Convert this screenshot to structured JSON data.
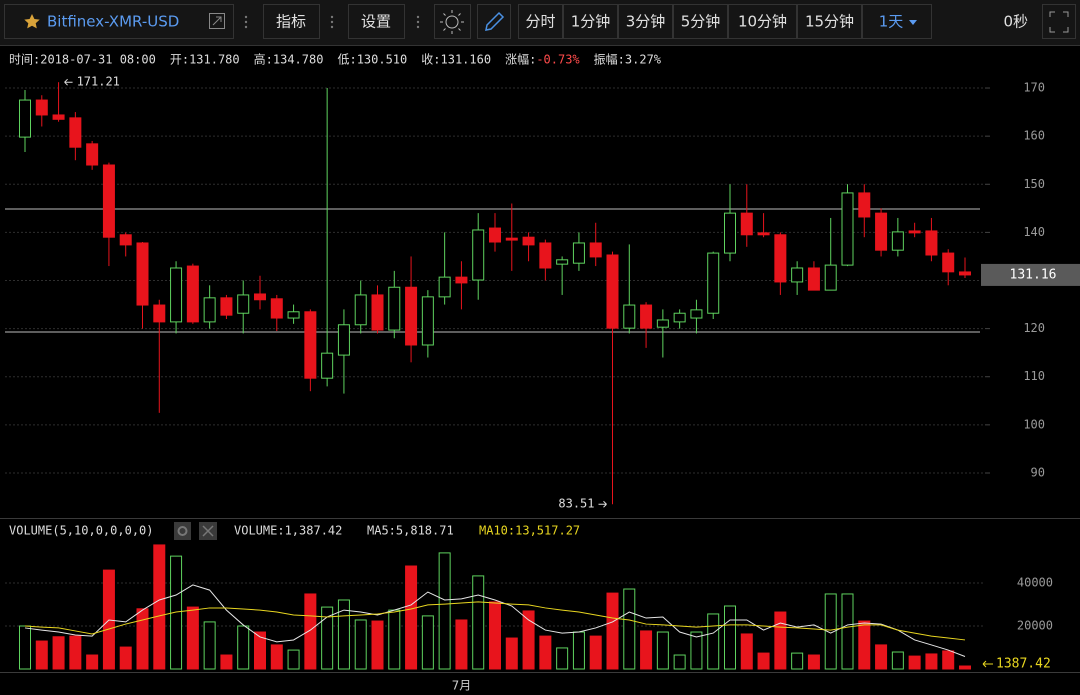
{
  "toolbar": {
    "symbol": "Bitfinex-XMR-USD",
    "indicators": "指标",
    "settings": "设置",
    "intervals": [
      "分时",
      "1分钟",
      "3分钟",
      "5分钟",
      "10分钟",
      "15分钟",
      "1天"
    ],
    "active_interval": 6,
    "countdown": "0秒"
  },
  "info": [
    {
      "label": "时间:",
      "value": "2018-07-31 08:00"
    },
    {
      "label": "开:",
      "value": "131.780"
    },
    {
      "label": "高:",
      "value": "134.780"
    },
    {
      "label": "低:",
      "value": "130.510"
    },
    {
      "label": "收:",
      "value": "131.160"
    },
    {
      "label": "涨幅:",
      "value": "-0.73%",
      "color": "#ff4b4b"
    },
    {
      "label": "振幅:",
      "value": "3.27%"
    }
  ],
  "chart_data": {
    "type": "candlestick",
    "categories": [
      null,
      null,
      null,
      null,
      null,
      null,
      null,
      null,
      null,
      null,
      null,
      null,
      null,
      null,
      null,
      null,
      null,
      null,
      null,
      null,
      null,
      null,
      null,
      null,
      null,
      null,
      "7月",
      null,
      null,
      null,
      null,
      null,
      null,
      null,
      null,
      null,
      null,
      null,
      null,
      null,
      null,
      null,
      null,
      null,
      null,
      null,
      null,
      null,
      null,
      null,
      null,
      null,
      null,
      null,
      null,
      null,
      null
    ],
    "open": [
      159.8,
      167.5,
      164.4,
      163.8,
      158.4,
      154,
      139.5,
      137.8,
      124.9,
      121.4,
      133,
      121.4,
      126.4,
      123.2,
      127.2,
      126.2,
      122.2,
      123.5,
      109.7,
      114.5,
      120.8,
      127,
      119.7,
      128.6,
      116.6,
      126.6,
      130.7,
      130.1,
      140.9,
      138.8,
      139,
      137.8,
      133.4,
      133.6,
      137.8,
      135.3,
      120.1,
      124.9,
      120.3,
      121.4,
      122.2,
      123.2,
      135.7,
      144,
      139.9,
      139.5,
      129.7,
      132.6,
      128,
      133.2,
      148.2,
      144,
      136.3,
      140.3,
      140.3,
      135.7,
      131.78
    ],
    "high": [
      169.6,
      168.5,
      171.21,
      165,
      159,
      154.5,
      140,
      138,
      126,
      134,
      133.5,
      129,
      127,
      130,
      131,
      127,
      125,
      124,
      170,
      124,
      130,
      129,
      132,
      135,
      128,
      140,
      134,
      144,
      144,
      146,
      140,
      138.5,
      135,
      140,
      142,
      136,
      137.5,
      125.5,
      124,
      124,
      126,
      136,
      150,
      150,
      144,
      140,
      134,
      134,
      143,
      150,
      150,
      145,
      143,
      142,
      143,
      136.5,
      134.78
    ],
    "low": [
      156.7,
      162,
      163,
      155,
      153,
      133,
      135,
      120,
      102.5,
      119,
      121,
      120,
      122,
      119,
      124,
      119.5,
      121,
      107,
      108,
      106.5,
      119,
      119,
      118,
      113,
      114,
      125,
      124,
      126,
      136,
      132,
      134,
      130,
      127,
      132,
      133,
      83.51,
      119,
      116,
      114,
      120,
      119,
      122,
      134,
      137,
      139,
      127,
      127,
      128,
      128,
      133,
      139,
      135,
      135,
      139,
      134,
      129,
      130.51
    ],
    "close": [
      167.5,
      164.4,
      163.5,
      157.7,
      154,
      139,
      137.4,
      124.9,
      121.4,
      132.6,
      121.4,
      126.4,
      122.8,
      127,
      126,
      122.2,
      123.5,
      109.7,
      114.9,
      120.8,
      127,
      119.7,
      128.6,
      116.6,
      126.6,
      130.7,
      129.5,
      140.5,
      138,
      138.4,
      137.4,
      132.6,
      134.3,
      137.8,
      134.9,
      120.1,
      124.9,
      120.1,
      121.8,
      123.2,
      123.9,
      135.7,
      144,
      139.5,
      139.5,
      129.7,
      132.6,
      128,
      133.2,
      148.2,
      143.2,
      136.3,
      140.1,
      139.9,
      135.3,
      131.8,
      131.16
    ],
    "up_color": "#5fd35f",
    "down_color": "#e8141c",
    "ylim": [
      81.27,
      174.16
    ],
    "yticks": [
      90,
      100,
      110,
      120,
      130,
      140,
      150,
      160,
      170
    ],
    "grid": true,
    "hlines": [
      144.85,
      119.3
    ],
    "high_index": 2,
    "low_index": 35,
    "volume": {
      "legend": "VOLUME(5,10,0,0,0,0)",
      "current": "VOLUME:1,387.42",
      "ma5_label": "MA5:5,818.71",
      "ma10_label": "MA10:13,517.27",
      "values": [
        20000,
        13000,
        15000,
        15300,
        6500,
        46000,
        10200,
        28000,
        57700,
        52500,
        28800,
        21900,
        6500,
        20000,
        17200,
        11200,
        8800,
        34900,
        28800,
        32100,
        22800,
        22300,
        27400,
        47900,
        24700,
        54000,
        22800,
        43300,
        31200,
        14400,
        27000,
        15300,
        9800,
        17200,
        15300,
        35300,
        37200,
        17700,
        17200,
        6500,
        17200,
        25600,
        29300,
        16300,
        7400,
        26500,
        7400,
        6500,
        34900,
        34900,
        22300,
        11200,
        7900,
        6000,
        7000,
        8400,
        1387.42
      ],
      "ma5": [
        19100,
        18100,
        17200,
        15800,
        15300,
        22800,
        21900,
        27400,
        32100,
        34400,
        39100,
        36700,
        27400,
        20500,
        14900,
        12600,
        13500,
        18100,
        24200,
        27400,
        26500,
        25100,
        27400,
        29800,
        35800,
        32100,
        32600,
        34400,
        32100,
        29300,
        22800,
        18100,
        16700,
        17200,
        19100,
        21900,
        26500,
        23700,
        24200,
        17200,
        14900,
        16700,
        22800,
        22800,
        18100,
        21400,
        19500,
        20500,
        16700,
        20500,
        21400,
        20900,
        18100,
        13500,
        11200,
        8800,
        5818.71
      ],
      "ma10": [
        20000,
        19500,
        19100,
        17700,
        16300,
        18600,
        20900,
        22800,
        24700,
        26500,
        27400,
        28400,
        28400,
        27900,
        27400,
        26500,
        25100,
        24700,
        24200,
        24700,
        25100,
        25600,
        26500,
        27900,
        29800,
        30200,
        30700,
        31200,
        30700,
        30200,
        29800,
        28400,
        27400,
        26500,
        25100,
        23700,
        22800,
        20900,
        20500,
        20000,
        19500,
        20000,
        20500,
        20500,
        20000,
        19500,
        19100,
        18600,
        18100,
        19500,
        20500,
        20500,
        18100,
        16700,
        15300,
        14400,
        13517.27
      ],
      "ma5_color": "#e6e6e6",
      "ma10_color": "#e8d620",
      "ylim": [
        0,
        60000
      ],
      "yticks": [
        20000,
        40000
      ]
    }
  }
}
